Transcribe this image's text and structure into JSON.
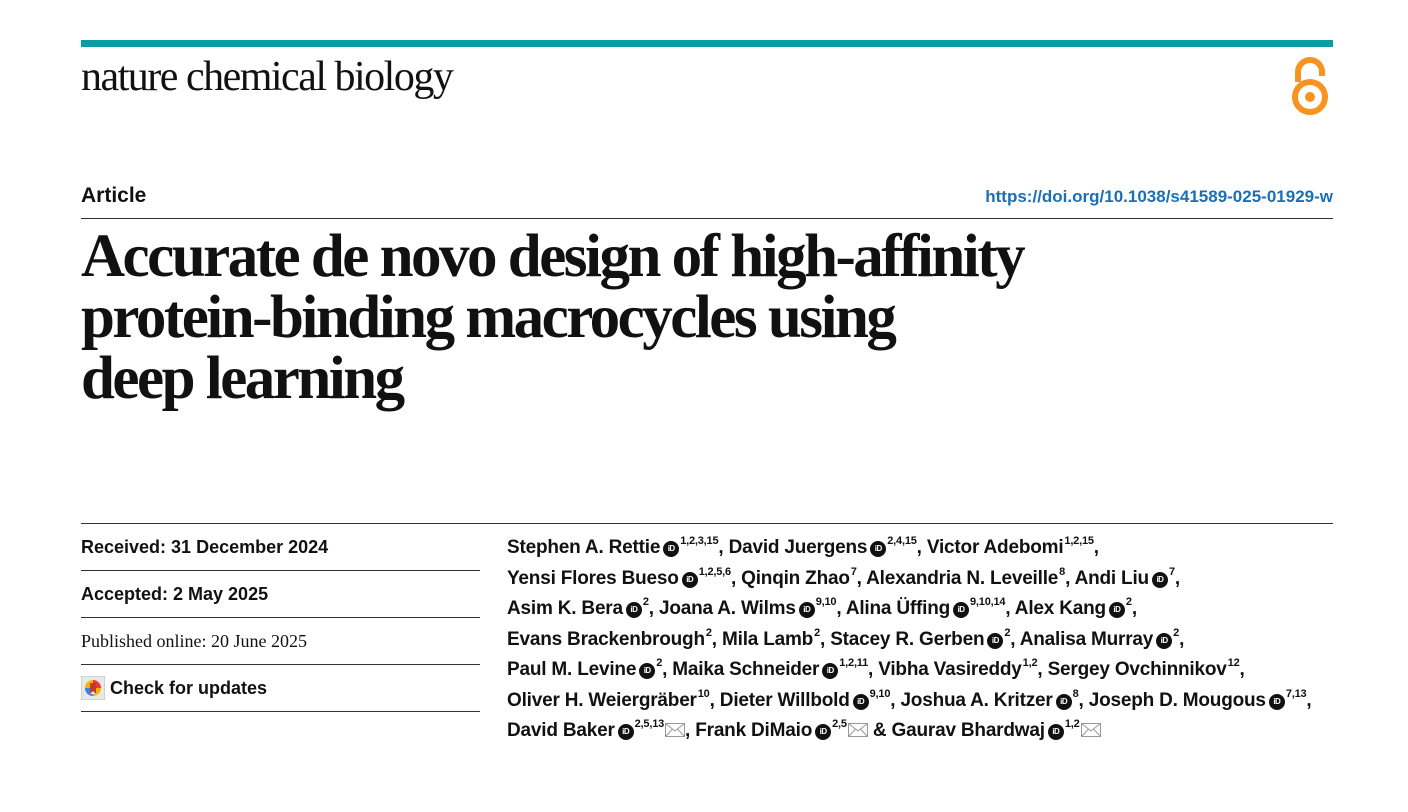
{
  "header": {
    "journal_name": "nature chemical biology",
    "accent_color": "#0e9aa3",
    "open_access_icon": "open-access-icon",
    "open_access_color": "#f7931e"
  },
  "article": {
    "type": "Article",
    "doi": "https://doi.org/10.1038/s41589-025-01929-w",
    "title": "Accurate de novo design of high-affinity protein-binding macrocycles using deep learning"
  },
  "dates": {
    "received": "Received: 31 December 2024",
    "accepted": "Accepted: 2 May 2025",
    "published": "Published online: 20 June 2025",
    "check_updates": "Check for updates"
  },
  "authors": [
    {
      "name": "Stephen A. Rettie",
      "orcid": true,
      "aff": "1,2,3,15",
      "sep": ", "
    },
    {
      "name": "David Juergens",
      "orcid": true,
      "aff": "2,4,15",
      "sep": ", "
    },
    {
      "name": "Victor Adebomi",
      "orcid": false,
      "aff": "1,2,15",
      "sep": ", "
    },
    {
      "name": "Yensi Flores Bueso",
      "orcid": true,
      "aff": "1,2,5,6",
      "sep": ", "
    },
    {
      "name": "Qinqin Zhao",
      "orcid": false,
      "aff": "7",
      "sep": ", "
    },
    {
      "name": "Alexandria N. Leveille",
      "orcid": false,
      "aff": "8",
      "sep": ", "
    },
    {
      "name": "Andi Liu",
      "orcid": true,
      "aff": "7",
      "sep": ", "
    },
    {
      "name": "Asim K. Bera",
      "orcid": true,
      "aff": "2",
      "sep": ", "
    },
    {
      "name": "Joana A. Wilms",
      "orcid": true,
      "aff": "9,10",
      "sep": ", "
    },
    {
      "name": "Alina Üffing",
      "orcid": true,
      "aff": "9,10,14",
      "sep": ", "
    },
    {
      "name": "Alex Kang",
      "orcid": true,
      "aff": "2",
      "sep": ", "
    },
    {
      "name": "Evans Brackenbrough",
      "orcid": false,
      "aff": "2",
      "sep": ", "
    },
    {
      "name": "Mila Lamb",
      "orcid": false,
      "aff": "2",
      "sep": ", "
    },
    {
      "name": "Stacey R. Gerben",
      "orcid": true,
      "aff": "2",
      "sep": ", "
    },
    {
      "name": "Analisa Murray",
      "orcid": true,
      "aff": "2",
      "sep": ", "
    },
    {
      "name": "Paul M. Levine",
      "orcid": true,
      "aff": "2",
      "sep": ", "
    },
    {
      "name": "Maika Schneider",
      "orcid": true,
      "aff": "1,2,11",
      "sep": ", "
    },
    {
      "name": "Vibha Vasireddy",
      "orcid": false,
      "aff": "1,2",
      "sep": ", "
    },
    {
      "name": "Sergey Ovchinnikov",
      "orcid": false,
      "aff": "12",
      "sep": ", "
    },
    {
      "name": "Oliver H. Weiergräber",
      "orcid": false,
      "aff": "10",
      "sep": ", "
    },
    {
      "name": "Dieter Willbold",
      "orcid": true,
      "aff": "9,10",
      "sep": ", "
    },
    {
      "name": "Joshua A. Kritzer",
      "orcid": true,
      "aff": "8",
      "sep": ", "
    },
    {
      "name": "Joseph D. Mougous",
      "orcid": true,
      "aff": "7,13",
      "sep": ", "
    },
    {
      "name": "David Baker",
      "orcid": true,
      "aff": "2,5,13",
      "mail": true,
      "sep": ", "
    },
    {
      "name": "Frank DiMaio",
      "orcid": true,
      "aff": "2,5",
      "mail": true,
      "sep": " & "
    },
    {
      "name": "Gaurav Bhardwaj",
      "orcid": true,
      "aff": "1,2",
      "mail": true,
      "sep": ""
    }
  ],
  "orcid_label": "iD"
}
